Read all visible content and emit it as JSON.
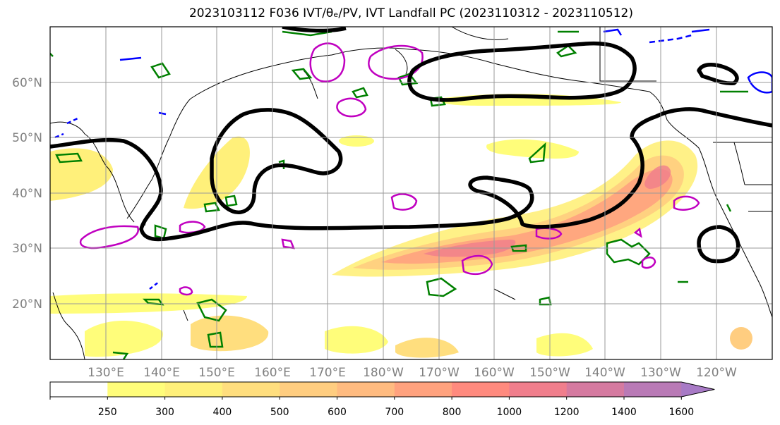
{
  "title": "2023103112 F036 IVT/θₑ/PV, IVT Landfall PC (2023110312 - 2023110512)",
  "latitude_labels": [
    "60°N",
    "50°N",
    "40°N",
    "30°N",
    "20°N"
  ],
  "longitude_labels": [
    "130°E",
    "140°E",
    "150°E",
    "160°E",
    "170°E",
    "180°W",
    "170°W",
    "160°W",
    "150°W",
    "140°W",
    "130°W",
    "120°W"
  ],
  "colorbar": {
    "levels": [
      "250",
      "300",
      "400",
      "500",
      "600",
      "700",
      "800",
      "1000",
      "1200",
      "1400",
      "1600"
    ],
    "colors": [
      "#ffffff",
      "#fffd7a",
      "#fff07a",
      "#ffde7e",
      "#ffcd80",
      "#ffbb80",
      "#ffa27e",
      "#ff8a7e",
      "#f07e8c",
      "#d57aa0",
      "#b97ab6",
      "#a87ac6"
    ]
  },
  "overlay_colors": {
    "ivt_shading": "#ff8a7e",
    "landfall_pc": "#000000",
    "theta_e": "#008000",
    "pv_positive": "#c000c0",
    "pv_negative": "#0000ff"
  }
}
